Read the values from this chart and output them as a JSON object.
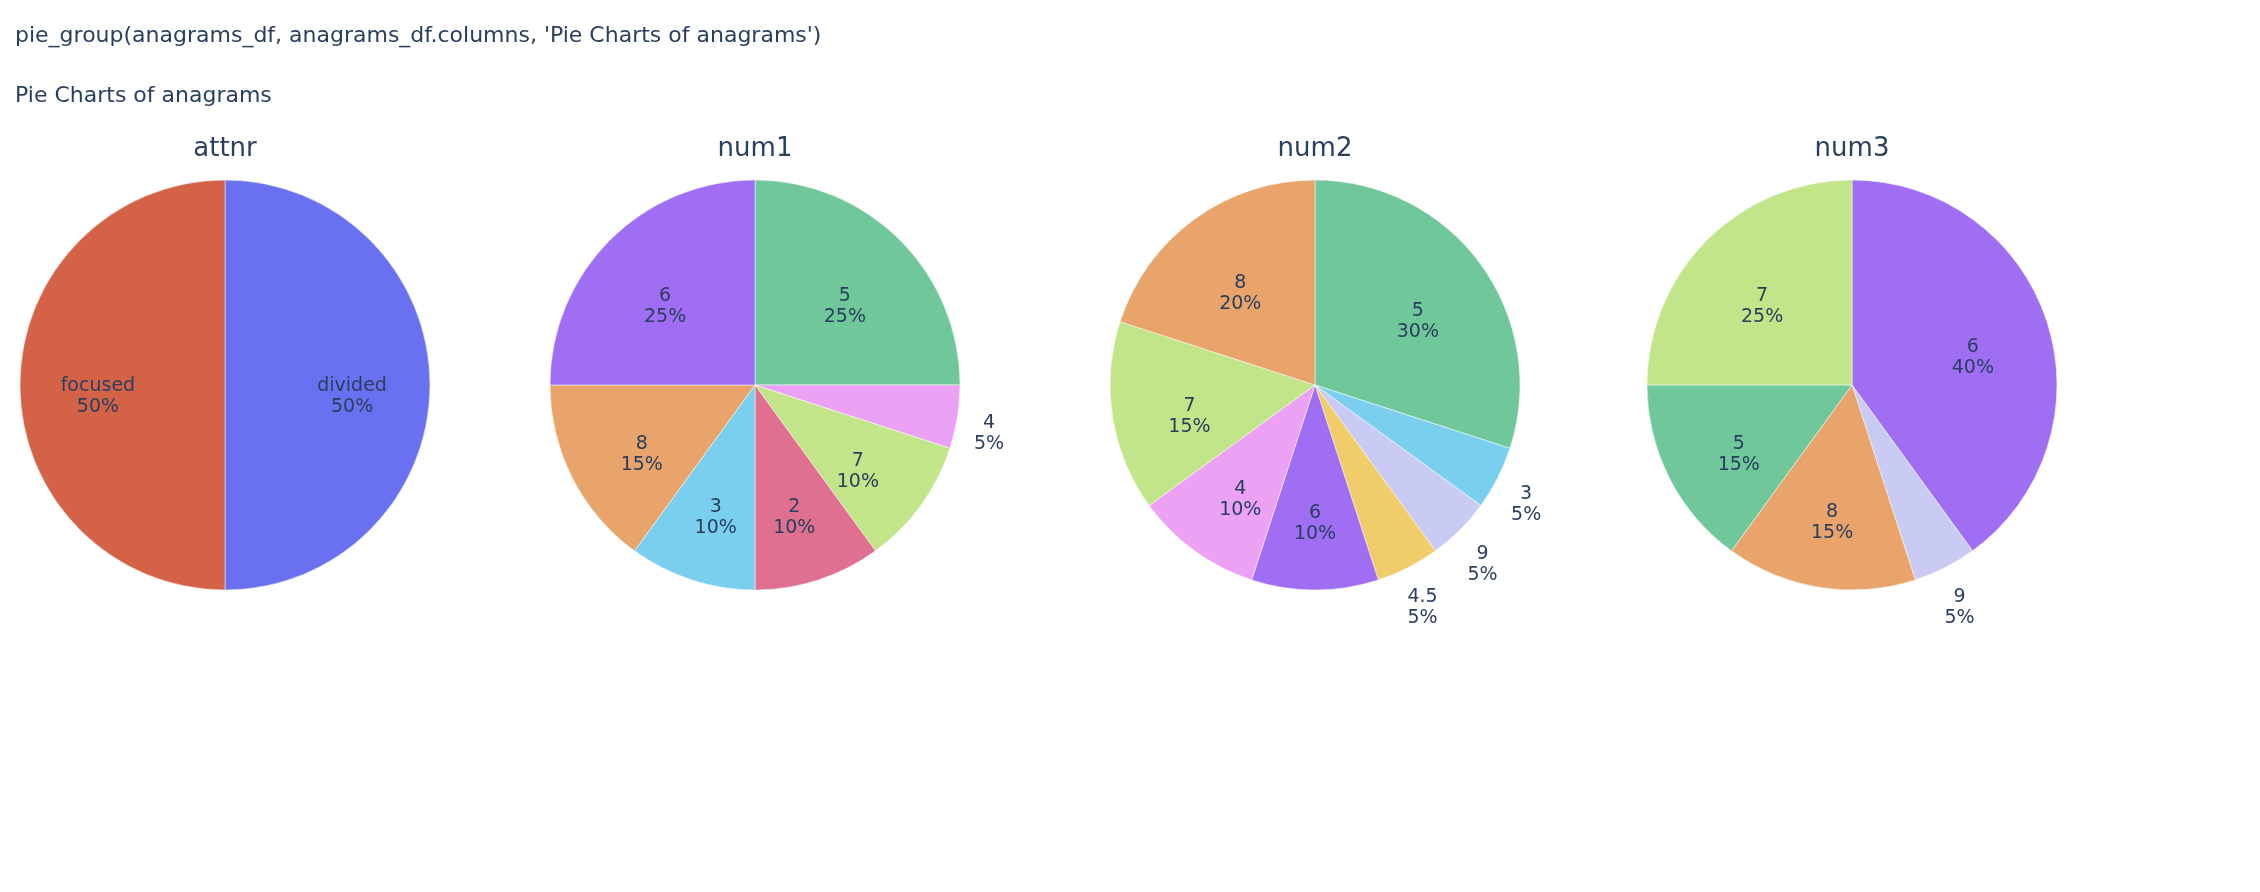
{
  "chart_data": [
    {
      "type": "pie",
      "title": "attnr",
      "annotations": [
        "pie_group(anagrams_df, anagrams_df.columns, 'Pie Charts of anagrams')",
        "Pie Charts of anagrams"
      ],
      "categories": [
        "divided",
        "focused"
      ],
      "values": [
        50,
        50
      ],
      "value_labels": [
        "50%",
        "50%"
      ],
      "colors": [
        "#6a71f0",
        "#d46246"
      ]
    },
    {
      "type": "pie",
      "title": "num1",
      "categories": [
        "5",
        "4",
        "7",
        "2",
        "3",
        "8",
        "6"
      ],
      "values": [
        25,
        5,
        10,
        10,
        10,
        15,
        25
      ],
      "value_labels": [
        "25%",
        "5%",
        "10%",
        "10%",
        "10%",
        "15%",
        "25%"
      ],
      "colors": [
        "#6fc79a",
        "#eba2f5",
        "#c2e58a",
        "#e07090",
        "#7acfef",
        "#e8a46a",
        "#9f6ef2"
      ]
    },
    {
      "type": "pie",
      "title": "num2",
      "categories": [
        "5",
        "3",
        "9",
        "4.5",
        "6",
        "4",
        "7",
        "8"
      ],
      "values": [
        30,
        5,
        5,
        5,
        10,
        10,
        15,
        20
      ],
      "value_labels": [
        "30%",
        "5%",
        "5%",
        "5%",
        "10%",
        "10%",
        "15%",
        "20%"
      ],
      "colors": [
        "#6fc79a",
        "#7acfef",
        "#c9cbf5",
        "#f0cc6a",
        "#9f6ef2",
        "#eba2f5",
        "#c2e58a",
        "#e8a46a"
      ]
    },
    {
      "type": "pie",
      "title": "num3",
      "categories": [
        "6",
        "9",
        "8",
        "5",
        "7"
      ],
      "values": [
        40,
        5,
        15,
        15,
        25
      ],
      "value_labels": [
        "40%",
        "5%",
        "15%",
        "15%",
        "25%"
      ],
      "colors": [
        "#9f6ef2",
        "#c9cbf5",
        "#e8a46a",
        "#6fc79a",
        "#c2e58a"
      ]
    }
  ]
}
